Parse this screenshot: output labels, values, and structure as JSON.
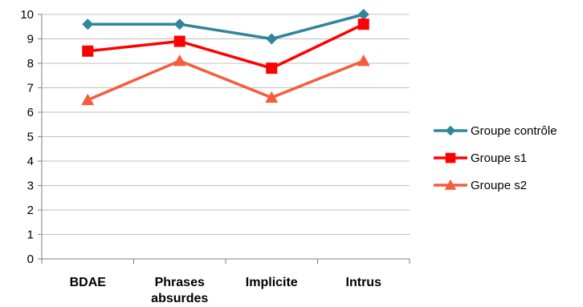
{
  "chart_data": {
    "type": "line",
    "categories": [
      [
        "BDAE"
      ],
      [
        "Phrases",
        "absurdes"
      ],
      [
        "Implicite"
      ],
      [
        "Intrus"
      ]
    ],
    "series": [
      {
        "name": "Groupe contrôle",
        "values": [
          9.6,
          9.6,
          9.0,
          10.0
        ],
        "color": "#31859C",
        "marker": "diamond"
      },
      {
        "name": "Groupe s1",
        "values": [
          8.5,
          8.9,
          7.8,
          9.6
        ],
        "color": "#FF0000",
        "marker": "square"
      },
      {
        "name": "Groupe s2",
        "values": [
          6.5,
          8.1,
          6.6,
          8.1
        ],
        "color": "#F65C3C",
        "marker": "triangle"
      }
    ],
    "yticks": [
      "0",
      "1",
      "2",
      "3",
      "4",
      "5",
      "6",
      "7",
      "8",
      "9",
      "10"
    ],
    "ylim": [
      0,
      10
    ],
    "grid": true,
    "legend_position": "right"
  }
}
